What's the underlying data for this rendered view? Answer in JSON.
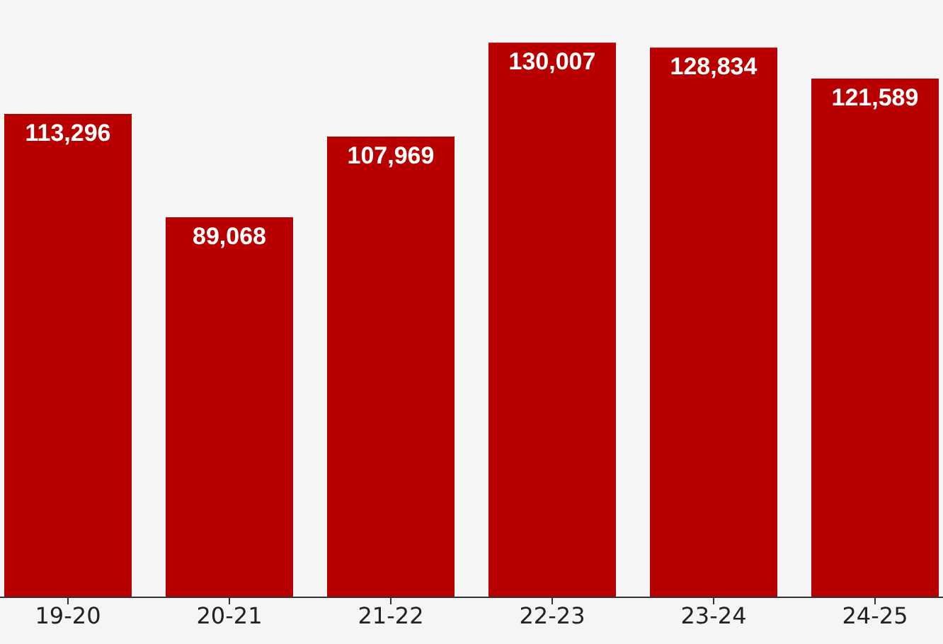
{
  "chart_data": {
    "type": "bar",
    "categories": [
      "19-20",
      "20-21",
      "21-22",
      "22-23",
      "23-24",
      "24-25"
    ],
    "values": [
      113296,
      89068,
      107969,
      130007,
      128834,
      121589
    ],
    "value_labels": [
      "113,296",
      "89,068",
      "107,969",
      "130,007",
      "128,834",
      "121,589"
    ],
    "color": "#b80000"
  }
}
